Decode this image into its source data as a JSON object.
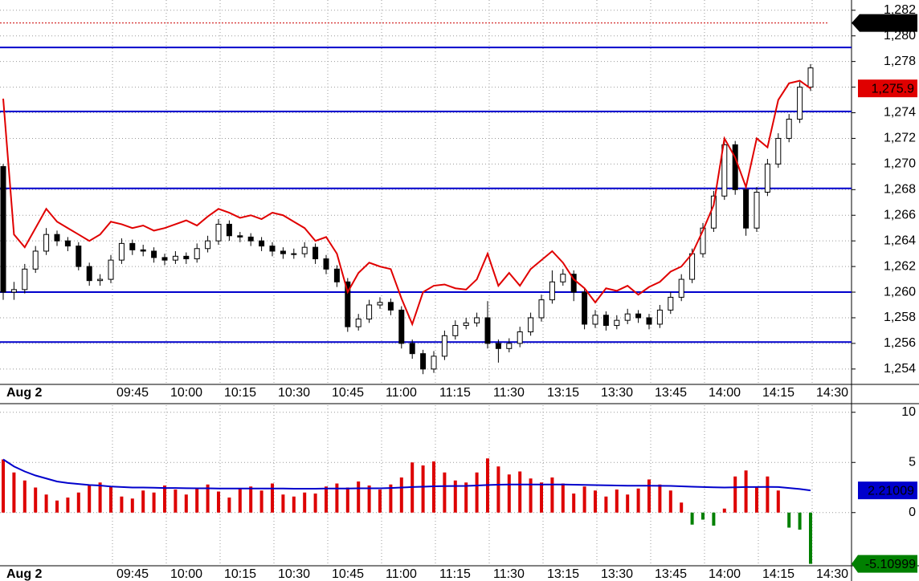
{
  "chart_data": [
    {
      "type": "candlestick",
      "ylim": [
        1252.8,
        1282.8
      ],
      "yticks": [
        {
          "value": 1254,
          "label": "1,254"
        },
        {
          "value": 1256,
          "label": "1,256"
        },
        {
          "value": 1258,
          "label": "1,258"
        },
        {
          "value": 1260,
          "label": "1,260"
        },
        {
          "value": 1262,
          "label": "1,262"
        },
        {
          "value": 1264,
          "label": "1,264"
        },
        {
          "value": 1266,
          "label": "1,266"
        },
        {
          "value": 1268,
          "label": "1,268"
        },
        {
          "value": 1270,
          "label": "1,270"
        },
        {
          "value": 1272,
          "label": "1,272"
        },
        {
          "value": 1274,
          "label": "1,274"
        },
        {
          "value": 1276,
          "label": "1,276"
        },
        {
          "value": 1278,
          "label": "1,278"
        },
        {
          "value": 1280,
          "label": "1,280"
        },
        {
          "value": 1282,
          "label": "1,282"
        }
      ],
      "x_labels": [
        "Aug 2",
        "09:45",
        "10:00",
        "10:15",
        "10:30",
        "10:45",
        "11:00",
        "11:15",
        "11:30",
        "13:15",
        "13:30",
        "13:45",
        "14:00",
        "14:15",
        "14:30"
      ],
      "grid": true,
      "open": [
        1269.8,
        1260,
        1260.2,
        1261.8,
        1263.2,
        1264.5,
        1264,
        1263.6,
        1262,
        1260.9,
        1261,
        1262.5,
        1263.8,
        1263.3,
        1263.2,
        1262.7,
        1262.5,
        1262.8,
        1262.6,
        1263.4,
        1264,
        1265.3,
        1264.4,
        1264.3,
        1264,
        1263.6,
        1263.2,
        1263,
        1263,
        1263.5,
        1262.6,
        1261.8,
        1260.8,
        1257.3,
        1257.9,
        1259,
        1259.2,
        1258.6,
        1256,
        1255.2,
        1254,
        1255,
        1256.6,
        1257.4,
        1257.6,
        1258,
        1256,
        1255.6,
        1256,
        1256.9,
        1258,
        1259.4,
        1260.8,
        1261.4,
        1260,
        1257.5,
        1258.2,
        1257.4,
        1257.8,
        1258.3,
        1258,
        1257.5,
        1258.6,
        1259.6,
        1261,
        1263,
        1265,
        1267.5,
        1271.5,
        1268,
        1265,
        1267.8,
        1270,
        1272,
        1273.5,
        1276
      ],
      "high": [
        1270,
        1260.8,
        1262.2,
        1263.6,
        1265,
        1264.8,
        1264.3,
        1263.9,
        1262.3,
        1261.4,
        1262.9,
        1264.2,
        1264.1,
        1263.7,
        1263.5,
        1263,
        1263.2,
        1263.1,
        1263.8,
        1264.4,
        1265.7,
        1265.6,
        1264.7,
        1264.6,
        1264.3,
        1263.9,
        1263.5,
        1263.4,
        1263.9,
        1263.8,
        1262.9,
        1262.1,
        1261.1,
        1258.3,
        1259.4,
        1259.6,
        1259.5,
        1258.9,
        1256.3,
        1255.5,
        1255.4,
        1257,
        1257.8,
        1258,
        1258.4,
        1259.3,
        1256.3,
        1256.4,
        1257.3,
        1258.4,
        1259.8,
        1261.7,
        1261.8,
        1261.7,
        1260.3,
        1258.6,
        1258.5,
        1258.2,
        1258.7,
        1258.6,
        1258.3,
        1259,
        1260,
        1261.4,
        1263.4,
        1265.4,
        1267.9,
        1272,
        1271.8,
        1268.3,
        1268.2,
        1270.4,
        1272.4,
        1273.9,
        1276.4,
        1277.8
      ],
      "low": [
        1259.4,
        1259.4,
        1259.9,
        1261.5,
        1262.9,
        1263.6,
        1263.2,
        1261.7,
        1260.5,
        1260.5,
        1260.7,
        1262.2,
        1262.9,
        1262.8,
        1262.3,
        1262.1,
        1262.2,
        1262.2,
        1262.3,
        1263.1,
        1263.7,
        1264,
        1263.9,
        1263.6,
        1263.2,
        1262.8,
        1262.6,
        1262.6,
        1262.7,
        1262.2,
        1261.4,
        1260.4,
        1256.9,
        1257,
        1257.6,
        1258.7,
        1258.2,
        1255.6,
        1254.8,
        1253.6,
        1253.7,
        1254.7,
        1256.3,
        1257.1,
        1257.3,
        1255.6,
        1254.5,
        1255.3,
        1255.7,
        1256.6,
        1257.7,
        1259.1,
        1260.5,
        1259.3,
        1257.1,
        1257.2,
        1257,
        1257.1,
        1257.5,
        1257.6,
        1257.1,
        1257.2,
        1258.3,
        1259.3,
        1260.7,
        1262.7,
        1264.7,
        1267.2,
        1267.6,
        1264.4,
        1264.7,
        1267.5,
        1269.7,
        1271.7,
        1273.2,
        1275.7
      ],
      "close": [
        1260,
        1260.2,
        1261.8,
        1263.2,
        1264.5,
        1264,
        1263.6,
        1262,
        1260.9,
        1261,
        1262.5,
        1263.8,
        1263.3,
        1263.2,
        1262.7,
        1262.5,
        1262.8,
        1262.6,
        1263.4,
        1264,
        1265.3,
        1264.4,
        1264.3,
        1264,
        1263.6,
        1263.2,
        1263,
        1263,
        1263.5,
        1262.6,
        1261.8,
        1260.8,
        1257.3,
        1257.9,
        1259,
        1259.2,
        1258.6,
        1256,
        1255.2,
        1254,
        1255,
        1256.6,
        1257.4,
        1257.6,
        1258,
        1256,
        1255.6,
        1256,
        1256.9,
        1258,
        1259.4,
        1260.8,
        1261.4,
        1260,
        1257.5,
        1258.2,
        1257.4,
        1257.8,
        1258.3,
        1258,
        1257.5,
        1258.6,
        1259.6,
        1261,
        1263,
        1265,
        1267.5,
        1271.5,
        1268,
        1265,
        1267.8,
        1270,
        1272,
        1273.5,
        1276,
        1277.5
      ],
      "line": {
        "color": "#e00000",
        "last_label": "1,275.9",
        "values": [
          1275.1,
          1264.5,
          1263.5,
          1265,
          1266.5,
          1265.5,
          1265,
          1264.5,
          1264,
          1264.5,
          1265.5,
          1265.3,
          1265,
          1265.2,
          1264.8,
          1265,
          1265.3,
          1265.6,
          1265.2,
          1265.9,
          1266.5,
          1266.2,
          1265.8,
          1266,
          1265.7,
          1266.2,
          1266,
          1265.5,
          1265,
          1264,
          1264.3,
          1263,
          1260,
          1261.5,
          1262.3,
          1262,
          1261.8,
          1259.5,
          1257.5,
          1260,
          1260.5,
          1260.6,
          1260.3,
          1260.2,
          1261,
          1263,
          1260.5,
          1261.5,
          1260.5,
          1261.8,
          1262.5,
          1263.2,
          1262.3,
          1261,
          1260.3,
          1259.2,
          1260.3,
          1260.1,
          1260.5,
          1259.8,
          1260.4,
          1260.8,
          1261.6,
          1262,
          1263,
          1264.8,
          1266.8,
          1272,
          1270.5,
          1268.2,
          1272,
          1271.3,
          1275,
          1276.3,
          1276.5,
          1275.9
        ]
      },
      "levels": {
        "color": "#0000cc",
        "values": [
          1279.1,
          1274.1,
          1268.1,
          1260,
          1256.1
        ]
      },
      "reference": {
        "value": 1281.01,
        "label": "1,281.01",
        "color": "#cc0000"
      }
    },
    {
      "type": "bar",
      "ylim": [
        -5.3,
        10.7
      ],
      "yticks": [
        0,
        5,
        10
      ],
      "x_labels": [
        "Aug 2",
        "09:45",
        "10:00",
        "10:15",
        "10:30",
        "10:45",
        "11:00",
        "11:15",
        "11:30",
        "13:15",
        "13:30",
        "13:45",
        "14:00",
        "14:15",
        "14:30"
      ],
      "grid": true,
      "up_color": "#dd0000",
      "down_color": "#008000",
      "label_color": "#008000",
      "values": [
        5.3,
        4,
        3.2,
        2.5,
        1.8,
        1.2,
        1.5,
        2,
        2.8,
        3,
        2.6,
        1.6,
        1.4,
        2.2,
        2,
        2.7,
        2.3,
        1.8,
        2.4,
        2.8,
        2.1,
        1.5,
        2.4,
        2.6,
        2.2,
        2.9,
        1.8,
        1.6,
        2,
        1.9,
        2.6,
        2.9,
        2.5,
        3.1,
        2.7,
        2.3,
        2.8,
        3.5,
        5,
        4.7,
        5.1,
        4,
        3.2,
        3,
        4,
        5.4,
        4.6,
        3.8,
        4.1,
        3.4,
        3,
        3.5,
        2.9,
        1.9,
        2.6,
        2.2,
        1.6,
        2.3,
        1.8,
        2.4,
        3.3,
        2.8,
        2.2,
        1,
        -1.2,
        -0.7,
        -1.3,
        0.4,
        3.6,
        4.2,
        2.5,
        3.6,
        2.2,
        -1.5,
        -1.7,
        -5.10999
      ],
      "line": {
        "color": "#0000cc",
        "values": [
          5.3,
          4.6,
          4.1,
          3.7,
          3.4,
          3.1,
          2.95,
          2.85,
          2.75,
          2.7,
          2.6,
          2.55,
          2.5,
          2.5,
          2.48,
          2.45,
          2.45,
          2.43,
          2.42,
          2.42,
          2.4,
          2.4,
          2.4,
          2.4,
          2.4,
          2.4,
          2.4,
          2.38,
          2.38,
          2.38,
          2.4,
          2.4,
          2.4,
          2.42,
          2.42,
          2.42,
          2.45,
          2.5,
          2.55,
          2.58,
          2.62,
          2.64,
          2.65,
          2.66,
          2.7,
          2.75,
          2.78,
          2.8,
          2.8,
          2.8,
          2.8,
          2.8,
          2.8,
          2.78,
          2.76,
          2.74,
          2.72,
          2.7,
          2.68,
          2.68,
          2.68,
          2.67,
          2.66,
          2.62,
          2.58,
          2.55,
          2.52,
          2.5,
          2.52,
          2.55,
          2.55,
          2.56,
          2.55,
          2.45,
          2.35,
          2.21009
        ]
      }
    }
  ]
}
